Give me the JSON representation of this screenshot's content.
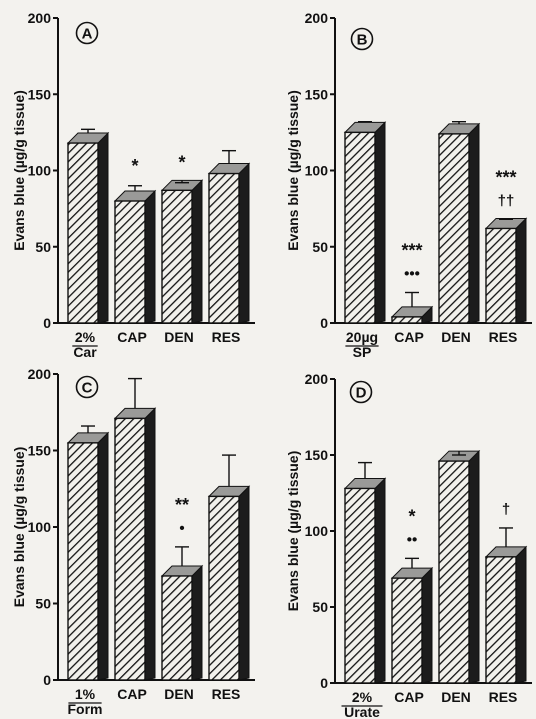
{
  "chart_data": [
    {
      "panel": "A",
      "type": "bar",
      "ylabel": "Evans blue (µg/g tissue)",
      "ylim": [
        0,
        200
      ],
      "yticks": [
        0,
        50,
        100,
        150,
        200
      ],
      "categories": [
        [
          "2%",
          "Car"
        ],
        [
          "CAP"
        ],
        [
          "DEN"
        ],
        [
          "RES"
        ]
      ],
      "values": [
        118,
        80,
        87,
        98
      ],
      "errors": [
        9,
        10,
        5,
        15
      ],
      "significance": [
        {
          "bar": 1,
          "lines": [
            "*"
          ]
        },
        {
          "bar": 2,
          "lines": [
            "*"
          ]
        }
      ]
    },
    {
      "panel": "B",
      "type": "bar",
      "ylabel": "Evans blue (µg/g tissue)",
      "ylim": [
        0,
        200
      ],
      "yticks": [
        0,
        50,
        100,
        150,
        200
      ],
      "categories": [
        [
          "20µg",
          "SP"
        ],
        [
          "CAP"
        ],
        [
          "DEN"
        ],
        [
          "RES"
        ]
      ],
      "values": [
        125,
        4,
        124,
        62
      ],
      "errors": [
        7,
        16,
        8,
        6
      ],
      "significance": [
        {
          "bar": 1,
          "lines": [
            "***",
            "•••"
          ]
        },
        {
          "bar": 3,
          "lines": [
            "***",
            "††"
          ]
        }
      ]
    },
    {
      "panel": "C",
      "type": "bar",
      "ylabel": "Evans blue (µg/g tissue)",
      "ylim": [
        0,
        200
      ],
      "yticks": [
        0,
        50,
        100,
        150,
        200
      ],
      "categories": [
        [
          "1%",
          "Form"
        ],
        [
          "CAP"
        ],
        [
          "DEN"
        ],
        [
          "RES"
        ]
      ],
      "values": [
        155,
        171,
        68,
        120
      ],
      "errors": [
        11,
        26,
        19,
        27
      ],
      "significance": [
        {
          "bar": 2,
          "lines": [
            "**",
            "•"
          ]
        }
      ]
    },
    {
      "panel": "D",
      "type": "bar",
      "ylabel": "Evans blue (µg/g tissue)",
      "ylim": [
        0,
        200
      ],
      "yticks": [
        0,
        50,
        100,
        150,
        200
      ],
      "categories": [
        [
          "2%",
          "Urate"
        ],
        [
          "CAP"
        ],
        [
          "DEN"
        ],
        [
          "RES"
        ]
      ],
      "values": [
        128,
        69,
        146,
        83
      ],
      "errors": [
        17,
        13,
        4,
        19
      ],
      "significance": [
        {
          "bar": 1,
          "lines": [
            "*",
            "••"
          ]
        },
        {
          "bar": 3,
          "lines": [
            "†"
          ]
        }
      ]
    }
  ],
  "colors": {
    "bar_face": "#f2f1ec",
    "bar_side": "#1c1c1c",
    "bar_top": "#9a9a98",
    "ink": "#111111"
  }
}
